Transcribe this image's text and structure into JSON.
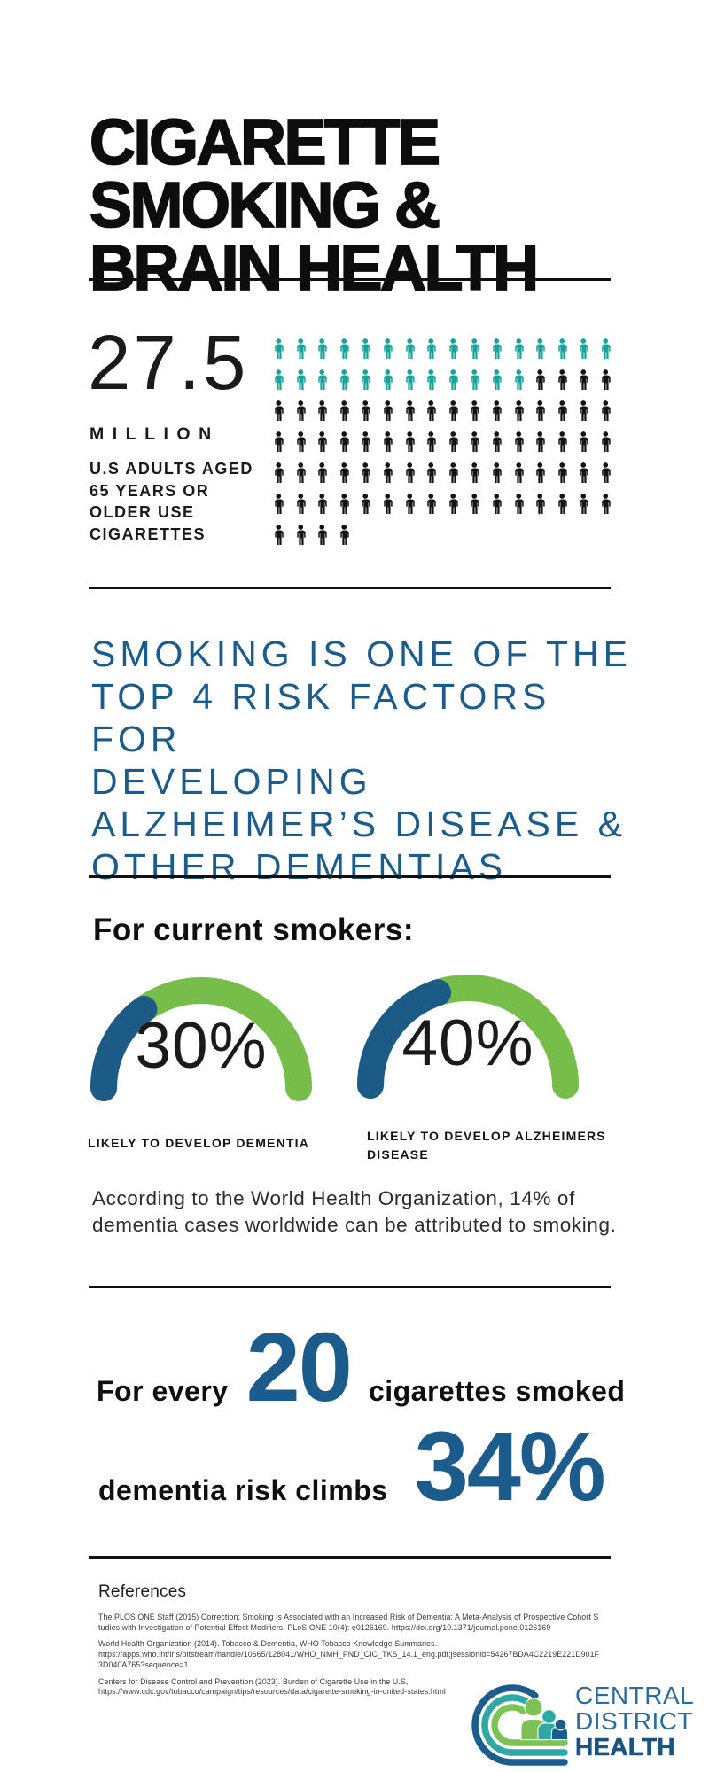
{
  "colors": {
    "teal": "#17A398",
    "icon_black": "#131313",
    "blue": "#1C5C8C",
    "green": "#77BD4A",
    "gauge_blue": "#1D5B87",
    "logo_blue": "#1B5E8E",
    "logo_teal": "#2FA8A3",
    "logo_green": "#7DC254",
    "logo_text_light": "#2A6A9C",
    "logo_text_bold": "#1A547F"
  },
  "title": {
    "lines": [
      "CIGARETTE",
      "SMOKING &",
      "BRAIN HEALTH"
    ]
  },
  "stat": {
    "value": "27.5",
    "unit": "MILLION",
    "description": "U.S ADULTS AGED\n65 YEARS OR\nOLDER USE\nCIGARETTES"
  },
  "pictogram": {
    "total": 100,
    "highlighted": 28,
    "columns": 16
  },
  "risk_heading": "SMOKING IS ONE OF THE\nTOP 4 RISK FACTORS FOR\nDEVELOPING\nALZHEIMER’S DISEASE &\nOTHER DEMENTIAS",
  "smokers_section": {
    "heading": "For current smokers:",
    "gauges": [
      {
        "value": 30,
        "display": "30%",
        "label": "LIKELY TO DEVELOP DEMENTIA"
      },
      {
        "value": 40,
        "display": "40%",
        "label": "LIKELY TO DEVELOP ALZHEIMERS\nDISEASE"
      }
    ]
  },
  "who_note": "According to the World Health Organization, 14% of dementia cases worldwide can be attributed to smoking.",
  "fact": {
    "line1_prefix": "For every",
    "line1_number": "20",
    "line1_suffix": "cigarettes smoked",
    "line2_prefix": "dementia risk climbs",
    "line2_number": "34%"
  },
  "references": {
    "heading": "References",
    "items": [
      "The PLOS ONE Staff (2015) Correction: Smoking Is Associated with an Increased Risk of Dementia: A Meta-Analysis of Prospective Cohort Studies with Investigation of Potential Effect Modifiers. PLoS ONE 10(4): e0126169. https://doi.org/10.1371/journal.pone.0126169",
      "World Health Organization (2014). Tobacco & Dementia, WHO Tobacco Knowledge Summaries.\nhttps://apps.who.int/iris/bitstream/handle/10665/128041/WHO_NMH_PND_CIC_TKS_14.1_eng.pdf;jsessionid=54267BDA4C2219E221D901F3D040A765?sequence=1",
      "Centers for Disease Control and Prevention (2023). Burden of Cigarette Use in the U.S,\nhttps://www.cdc.gov/tobacco/campaign/tips/resources/data/cigarette-smoking-in-united-states.html"
    ]
  },
  "logo": {
    "lines": [
      "CENTRAL",
      "DISTRICT",
      "HEALTH"
    ]
  },
  "chart_data": [
    {
      "type": "pictogram",
      "title": "27.5 MILLION U.S adults aged 65 years or older use cigarettes",
      "total_icons": 100,
      "highlighted_icons": 28,
      "icons_per_row": 16,
      "highlight_color": "#17A398",
      "base_color": "#131313",
      "value_label": "27.5 MILLION"
    },
    {
      "type": "gauge",
      "label": "LIKELY TO DEVELOP DEMENTIA",
      "value": 30,
      "max": 100,
      "value_color": "#1D5B87",
      "track_color": "#77BD4A"
    },
    {
      "type": "gauge",
      "label": "LIKELY TO DEVELOP ALZHEIMERS DISEASE",
      "value": 40,
      "max": 100,
      "value_color": "#1D5B87",
      "track_color": "#77BD4A"
    }
  ]
}
